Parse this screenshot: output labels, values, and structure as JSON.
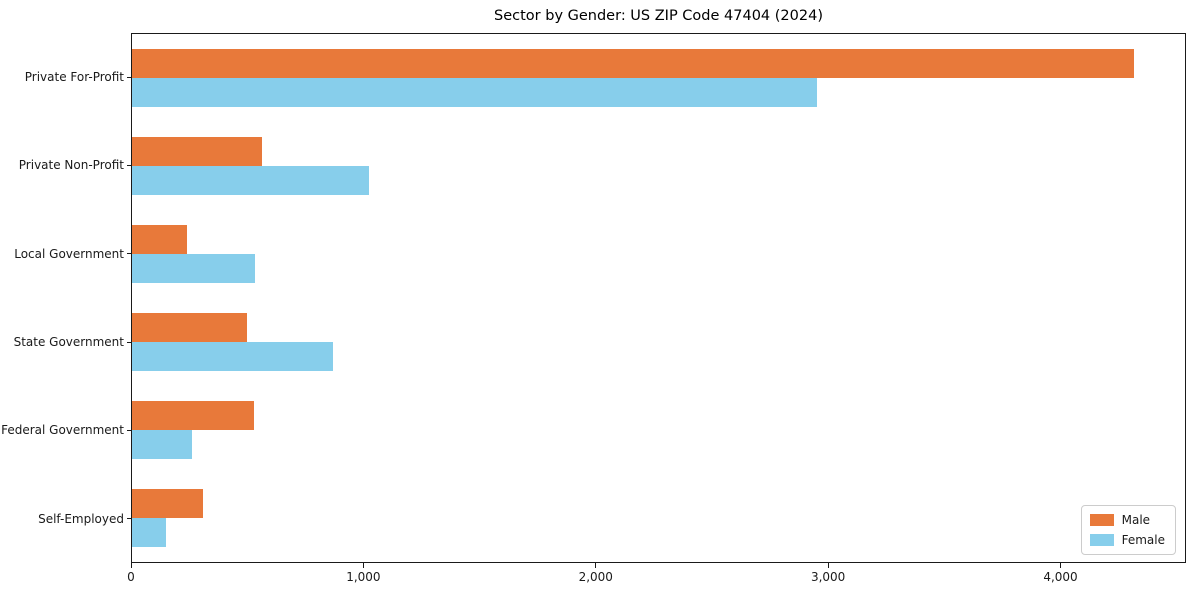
{
  "chart_data": {
    "type": "bar",
    "orientation": "horizontal",
    "title": "Sector by Gender: US ZIP Code 47404 (2024)",
    "categories": [
      "Private For-Profit",
      "Private Non-Profit",
      "Local Government",
      "State Government",
      "Federal Government",
      "Self-Employed"
    ],
    "series": [
      {
        "name": "Male",
        "color": "#E8793A",
        "values": [
          4320,
          560,
          235,
          495,
          525,
          305
        ]
      },
      {
        "name": "Female",
        "color": "#87CEEB",
        "values": [
          2955,
          1020,
          530,
          865,
          260,
          145
        ]
      }
    ],
    "xlim": [
      0,
      4540
    ],
    "xticks": [
      0,
      1000,
      2000,
      3000,
      4000
    ],
    "xtick_labels": [
      "0",
      "1,000",
      "2,000",
      "3,000",
      "4,000"
    ],
    "legend_position": "lower right",
    "grid": false,
    "plot_background": "#ffffff",
    "spine_color": "#1a1a1a"
  }
}
